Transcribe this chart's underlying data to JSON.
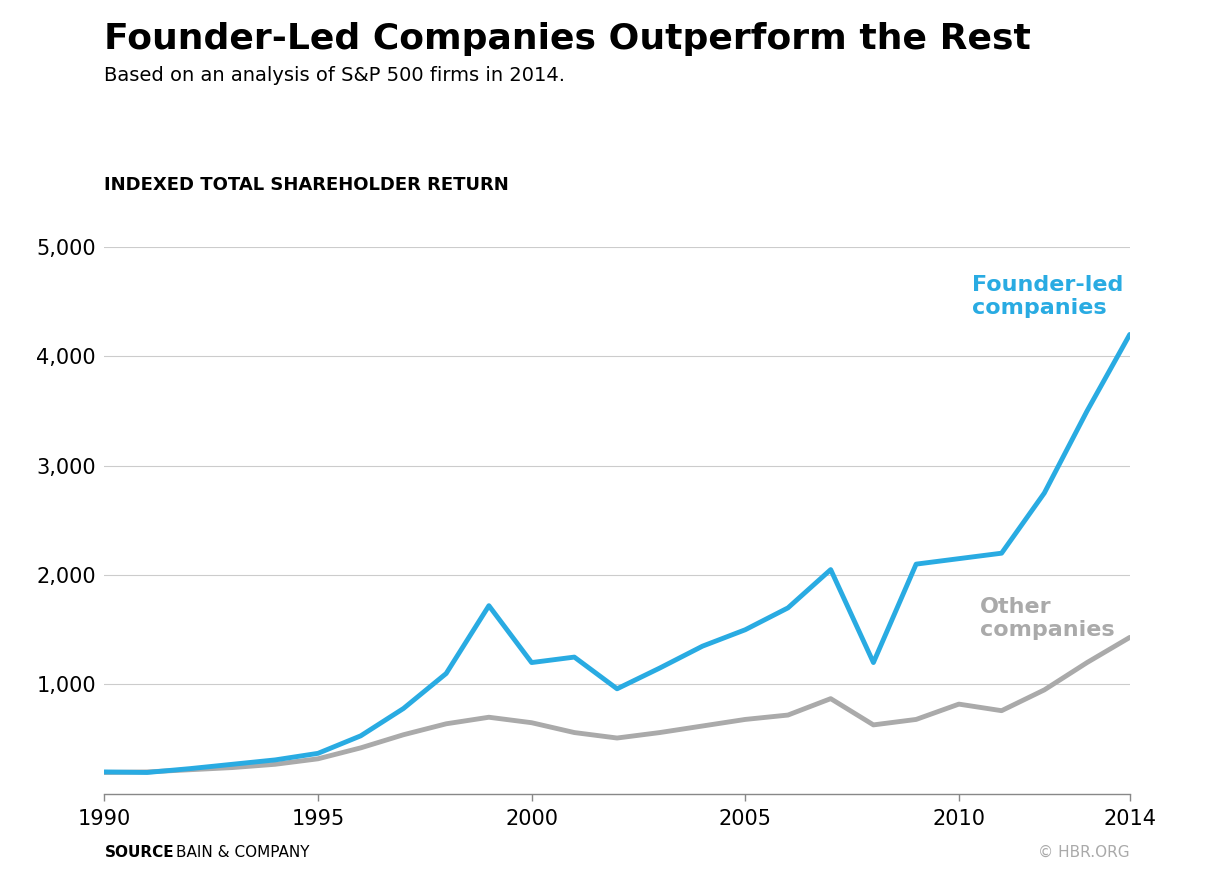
{
  "title": "Founder-Led Companies Outperform the Rest",
  "subtitle": "Based on an analysis of S&P 500 firms in 2014.",
  "ylabel": "INDEXED TOTAL SHAREHOLDER RETURN",
  "source_bold": "SOURCE",
  "source_text": "BAIN & COMPANY",
  "hbr_text": "© HBR.ORG",
  "founder_label": "Founder-led\ncompanies",
  "other_label": "Other\ncompanies",
  "founder_color": "#29ABE2",
  "other_color": "#AAAAAA",
  "background_color": "#FFFFFF",
  "ylim": [
    0,
    5000
  ],
  "yticks": [
    1000,
    2000,
    3000,
    4000,
    5000
  ],
  "xlim": [
    1990,
    2014
  ],
  "xticks": [
    1990,
    1995,
    2000,
    2005,
    2010,
    2014
  ],
  "founder_years": [
    1990,
    1991,
    1992,
    1993,
    1994,
    1995,
    1996,
    1997,
    1998,
    1999,
    2000,
    2001,
    2002,
    2003,
    2004,
    2005,
    2006,
    2007,
    2008,
    2009,
    2010,
    2011,
    2012,
    2013,
    2014
  ],
  "founder_values": [
    200,
    195,
    230,
    270,
    310,
    370,
    530,
    780,
    1100,
    1720,
    1200,
    1250,
    960,
    1150,
    1350,
    1500,
    1700,
    2050,
    1200,
    2100,
    2150,
    2200,
    2750,
    3500,
    4200
  ],
  "other_years": [
    1990,
    1991,
    1992,
    1993,
    1994,
    1995,
    1996,
    1997,
    1998,
    1999,
    2000,
    2001,
    2002,
    2003,
    2004,
    2005,
    2006,
    2007,
    2008,
    2009,
    2010,
    2011,
    2012,
    2013,
    2014
  ],
  "other_values": [
    195,
    200,
    220,
    240,
    270,
    320,
    420,
    540,
    640,
    700,
    650,
    560,
    510,
    560,
    620,
    680,
    720,
    870,
    630,
    680,
    820,
    760,
    950,
    1200,
    1430
  ],
  "line_width": 3.5,
  "title_fontsize": 26,
  "subtitle_fontsize": 14,
  "ylabel_fontsize": 13,
  "tick_fontsize": 15,
  "label_fontsize": 16,
  "source_fontsize": 11
}
